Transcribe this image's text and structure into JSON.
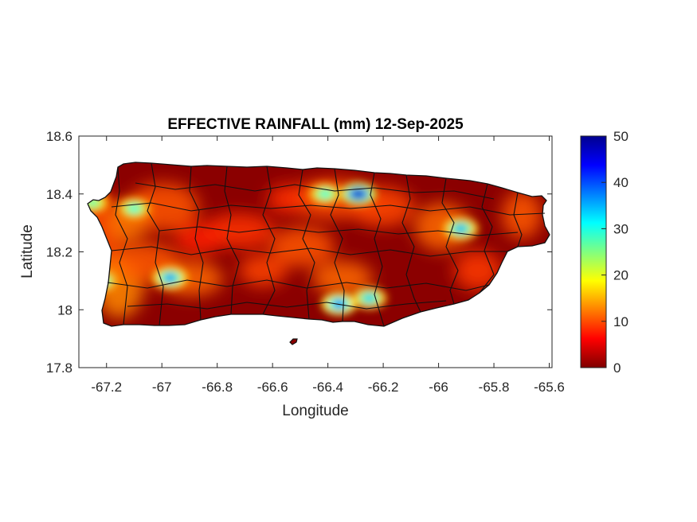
{
  "chart_data": {
    "type": "heatmap",
    "title": "EFFECTIVE RAINFALL (mm) 12-Sep-2025",
    "xlabel": "Longitude",
    "ylabel": "Latitude",
    "xlim": [
      -67.3,
      -65.59
    ],
    "ylim": [
      17.8,
      18.6
    ],
    "xticks": [
      -67.2,
      -67,
      -66.8,
      -66.6,
      -66.4,
      -66.2,
      -66,
      -65.8,
      -65.6
    ],
    "xtick_labels": [
      "-67.2",
      "-67",
      "-66.8",
      "-66.6",
      "-66.4",
      "-66.2",
      "-66",
      "-65.8",
      "-65.6"
    ],
    "yticks": [
      17.8,
      18,
      18.2,
      18.4,
      18.6
    ],
    "ytick_labels": [
      "17.8",
      "18",
      "18.2",
      "18.4",
      "18.6"
    ],
    "colorbar": {
      "min": 0,
      "max": 50,
      "ticks": [
        0,
        10,
        20,
        30,
        40,
        50
      ],
      "tick_labels": [
        "0",
        "10",
        "20",
        "30",
        "40",
        "50"
      ],
      "colormap": "jet"
    },
    "hotspots": [
      {
        "lon": -66.29,
        "lat": 18.4,
        "value": 48
      },
      {
        "lon": -66.36,
        "lat": 18.02,
        "value": 40
      },
      {
        "lon": -66.25,
        "lat": 18.04,
        "value": 34
      },
      {
        "lon": -65.92,
        "lat": 18.28,
        "value": 36
      },
      {
        "lon": -66.97,
        "lat": 18.11,
        "value": 38
      },
      {
        "lon": -67.22,
        "lat": 18.1,
        "value": 32
      },
      {
        "lon": -67.1,
        "lat": 18.35,
        "value": 30
      },
      {
        "lon": -66.41,
        "lat": 18.4,
        "value": 30
      },
      {
        "lon": -67.25,
        "lat": 18.37,
        "value": 28
      }
    ],
    "grid": false
  }
}
